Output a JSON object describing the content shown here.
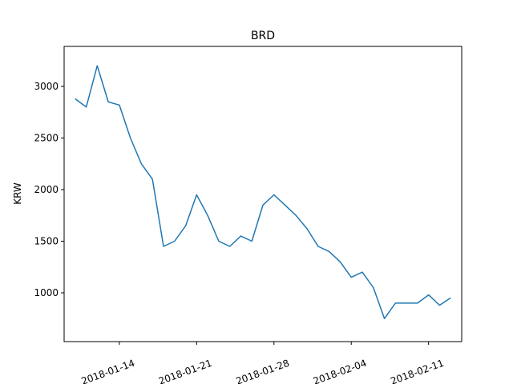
{
  "chart_data": {
    "type": "line",
    "title": "BRD",
    "ylabel": "KRW",
    "color": "#1f77b4",
    "x": [
      "2018-01-10",
      "2018-01-11",
      "2018-01-12",
      "2018-01-13",
      "2018-01-14",
      "2018-01-15",
      "2018-01-16",
      "2018-01-17",
      "2018-01-18",
      "2018-01-19",
      "2018-01-20",
      "2018-01-21",
      "2018-01-22",
      "2018-01-23",
      "2018-01-24",
      "2018-01-25",
      "2018-01-26",
      "2018-01-27",
      "2018-01-28",
      "2018-01-29",
      "2018-01-30",
      "2018-01-31",
      "2018-02-01",
      "2018-02-02",
      "2018-02-03",
      "2018-02-04",
      "2018-02-05",
      "2018-02-06",
      "2018-02-07",
      "2018-02-08",
      "2018-02-09",
      "2018-02-10",
      "2018-02-11",
      "2018-02-12",
      "2018-02-13"
    ],
    "values": [
      2880,
      2800,
      3200,
      2850,
      2820,
      2500,
      2250,
      2100,
      1450,
      1500,
      1650,
      1950,
      1750,
      1500,
      1450,
      1550,
      1500,
      1850,
      1950,
      1850,
      1750,
      1620,
      1450,
      1400,
      1300,
      1150,
      1200,
      1050,
      750,
      900,
      900,
      900,
      980,
      880,
      950
    ],
    "xlim": [
      "2018-01-09",
      "2018-02-14"
    ],
    "xticks": [
      "2018-01-14",
      "2018-01-21",
      "2018-01-28",
      "2018-02-04",
      "2018-02-11"
    ],
    "ylim": [
      527,
      3388
    ],
    "yticks": [
      1000,
      1500,
      2000,
      2500,
      3000
    ]
  }
}
